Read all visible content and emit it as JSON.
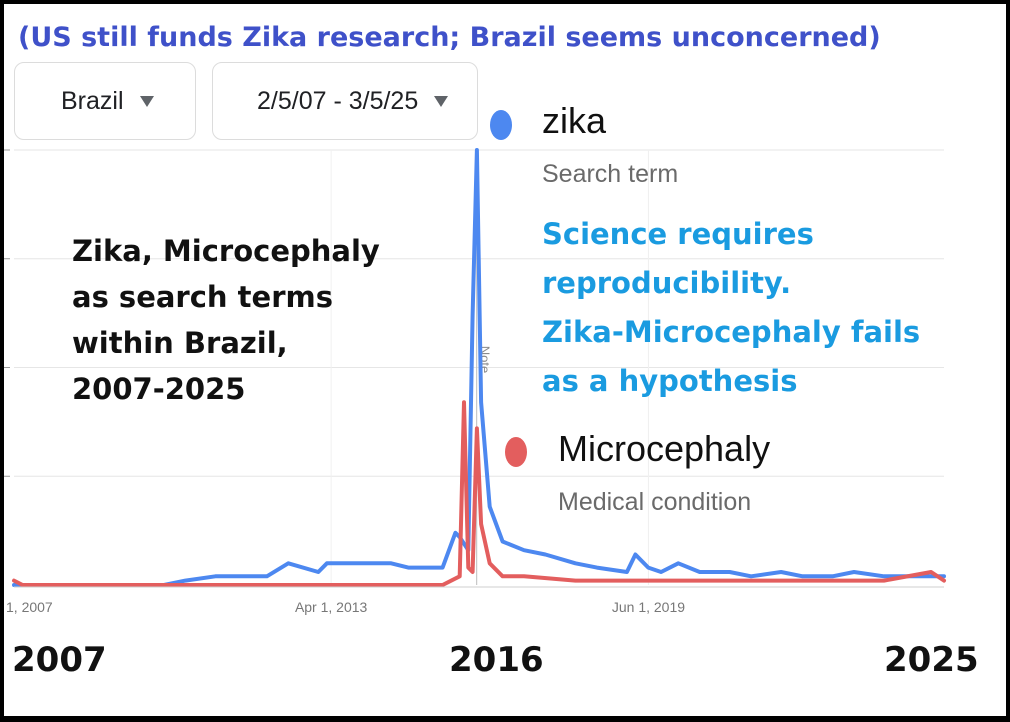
{
  "headline": "(US still funds Zika research; Brazil seems unconcerned)",
  "controls": {
    "region": "Brazil",
    "date_range": "2/5/07 - 3/5/25"
  },
  "legend": [
    {
      "name": "zika",
      "sub": "Search term",
      "color": "#4d88f0"
    },
    {
      "name": "Microcephaly",
      "sub": "Medical condition",
      "color": "#e35e5e"
    }
  ],
  "annotations": {
    "black_text": [
      "Zika, Microcephaly",
      "as search terms",
      "within Brazil,",
      "2007-2025"
    ],
    "blue_text": [
      "Science requires",
      "reproducibility.",
      "Zika-Microcephaly fails",
      "as a hypothesis"
    ],
    "note_marker": "Note",
    "big_years": [
      "2007",
      "2016",
      "2025"
    ]
  },
  "chart_data": {
    "type": "line",
    "x_tick_labels": [
      "1, 2007",
      "Apr 1, 2013",
      "Jun 1, 2019"
    ],
    "ylim": [
      0,
      100
    ],
    "grid": true,
    "series": [
      {
        "name": "zika",
        "color": "#4d88f0",
        "points": [
          [
            "2007-02",
            0
          ],
          [
            "2008-06",
            0
          ],
          [
            "2010-01",
            0
          ],
          [
            "2010-06",
            1
          ],
          [
            "2011-01",
            2
          ],
          [
            "2012-01",
            2
          ],
          [
            "2012-06",
            5
          ],
          [
            "2013-01",
            3
          ],
          [
            "2013-03",
            5
          ],
          [
            "2013-09",
            5
          ],
          [
            "2014-06",
            5
          ],
          [
            "2014-10",
            4
          ],
          [
            "2015-04",
            4
          ],
          [
            "2015-06",
            4
          ],
          [
            "2015-09",
            12
          ],
          [
            "2015-10",
            11
          ],
          [
            "2015-12",
            8
          ],
          [
            "2016-01",
            62
          ],
          [
            "2016-02",
            100
          ],
          [
            "2016-03",
            42
          ],
          [
            "2016-05",
            18
          ],
          [
            "2016-08",
            10
          ],
          [
            "2017-01",
            8
          ],
          [
            "2017-06",
            7
          ],
          [
            "2018-01",
            5
          ],
          [
            "2018-06",
            4
          ],
          [
            "2019-01",
            3
          ],
          [
            "2019-03",
            7
          ],
          [
            "2019-06",
            4
          ],
          [
            "2019-09",
            3
          ],
          [
            "2020-01",
            5
          ],
          [
            "2020-06",
            3
          ],
          [
            "2021-01",
            3
          ],
          [
            "2021-06",
            2
          ],
          [
            "2022-01",
            3
          ],
          [
            "2022-06",
            2
          ],
          [
            "2023-01",
            2
          ],
          [
            "2023-06",
            3
          ],
          [
            "2024-01",
            2
          ],
          [
            "2024-06",
            2
          ],
          [
            "2025-03",
            2
          ]
        ]
      },
      {
        "name": "Microcephaly",
        "color": "#e35e5e",
        "points": [
          [
            "2007-02",
            1
          ],
          [
            "2007-04",
            0
          ],
          [
            "2010-01",
            0
          ],
          [
            "2012-01",
            0
          ],
          [
            "2014-01",
            0
          ],
          [
            "2015-06",
            0
          ],
          [
            "2015-10",
            2
          ],
          [
            "2015-11",
            42
          ],
          [
            "2015-12",
            4
          ],
          [
            "2016-01",
            3
          ],
          [
            "2016-02",
            36
          ],
          [
            "2016-03",
            14
          ],
          [
            "2016-05",
            5
          ],
          [
            "2016-08",
            2
          ],
          [
            "2017-01",
            2
          ],
          [
            "2018-01",
            1
          ],
          [
            "2020-01",
            1
          ],
          [
            "2022-01",
            1
          ],
          [
            "2024-01",
            1
          ],
          [
            "2024-12",
            3
          ],
          [
            "2025-03",
            1
          ]
        ]
      }
    ]
  }
}
